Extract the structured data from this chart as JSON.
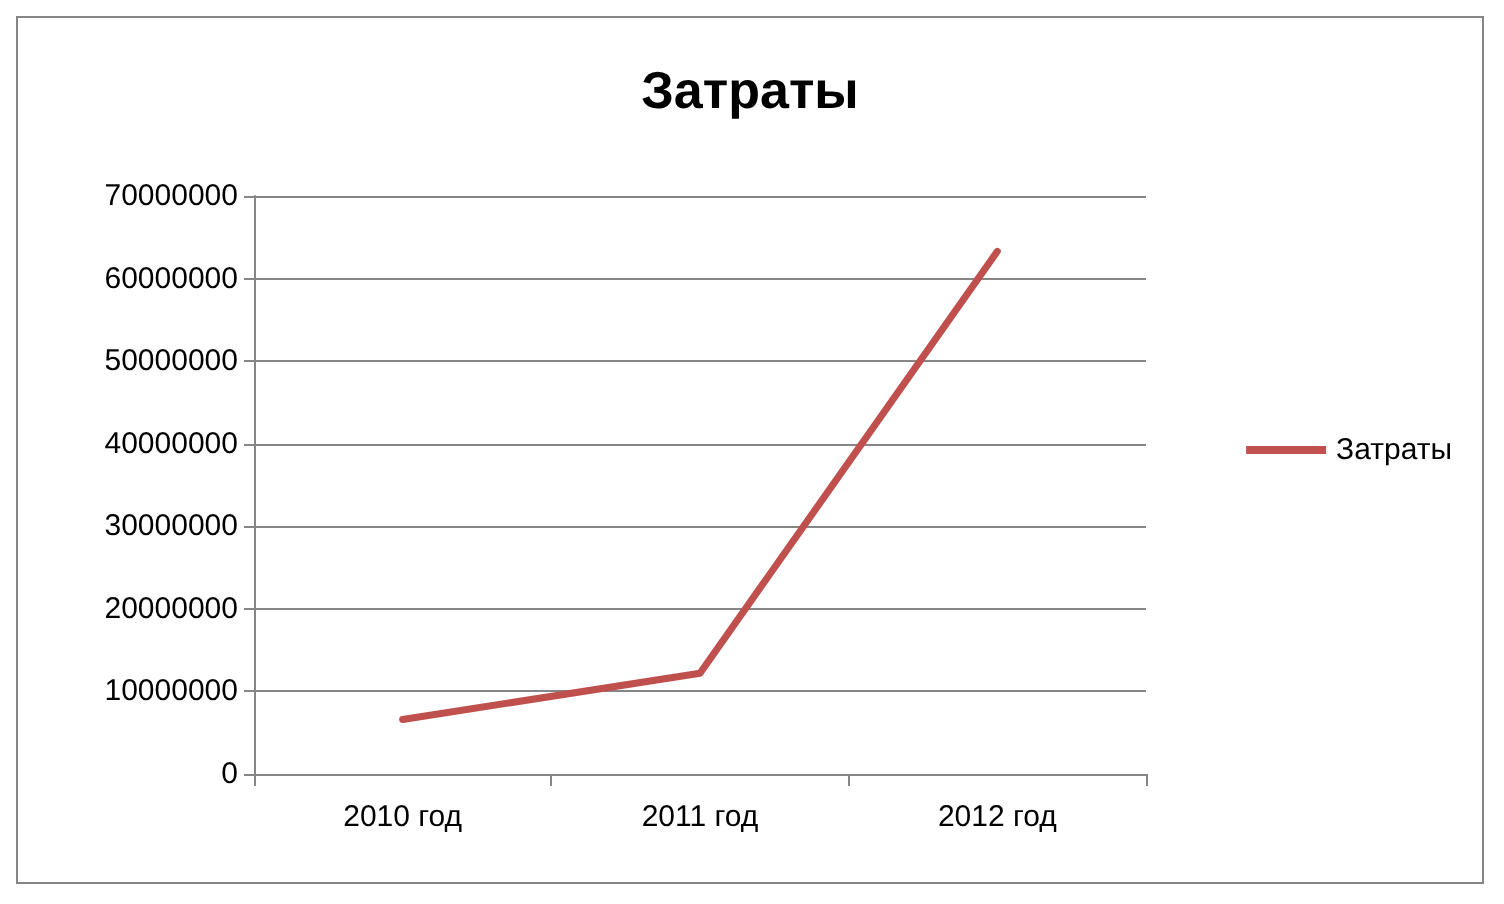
{
  "chart_data": {
    "type": "line",
    "title": "Затраты",
    "categories": [
      "2010 год",
      "2011 год",
      "2012 год"
    ],
    "series": [
      {
        "name": "Затраты",
        "color": "#c0504d",
        "values": [
          6600000,
          12200000,
          63300000
        ]
      }
    ],
    "ylim": [
      0,
      70000000
    ],
    "yticks": [
      0,
      10000000,
      20000000,
      30000000,
      40000000,
      50000000,
      60000000,
      70000000
    ],
    "grid": "y",
    "legend": "right",
    "marker": "none",
    "line_style": "solid"
  }
}
